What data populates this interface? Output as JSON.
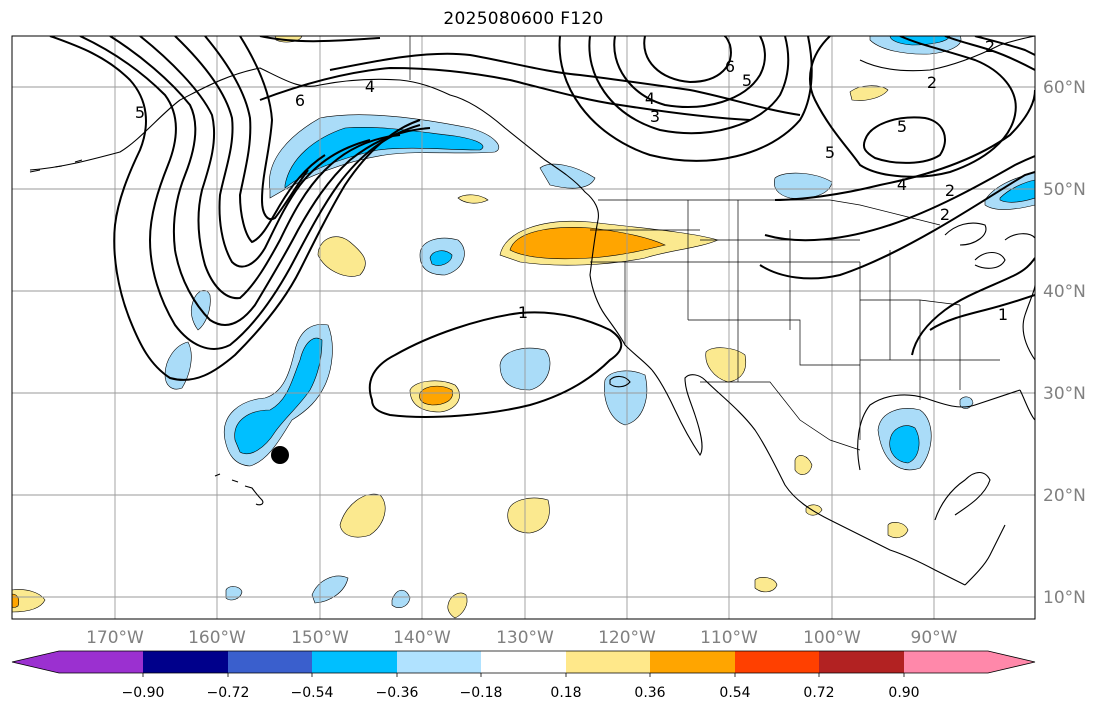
{
  "title": "2025080600 F120",
  "map": {
    "lon_labels": [
      "170°W",
      "160°W",
      "150°W",
      "140°W",
      "130°W",
      "120°W",
      "110°W",
      "100°W",
      "90°W"
    ],
    "lat_labels": [
      "60°N",
      "50°N",
      "40°N",
      "30°N",
      "20°N",
      "10°N"
    ],
    "contour_labels": [
      "5",
      "6",
      "4",
      "3",
      "6",
      "5",
      "4",
      "5",
      "2",
      "2",
      "5",
      "4",
      "2",
      "1",
      "2",
      "1"
    ]
  },
  "colorbar": {
    "ticks": [
      "−0.90",
      "−0.72",
      "−0.54",
      "−0.36",
      "−0.18",
      "0.18",
      "0.36",
      "0.54",
      "0.72",
      "0.90"
    ],
    "colors": [
      "#9b30d0",
      "#00008b",
      "#3a5fcd",
      "#00bfff",
      "#b0e2ff",
      "#ffffff",
      "#ffe88a",
      "#ffa500",
      "#ff4000",
      "#b22222",
      "#ff88aa"
    ]
  },
  "fill_colors": {
    "light_blue": "#aadcf8",
    "blue": "#00bfff",
    "light_yellow": "#fbe98f",
    "orange": "#ffa500"
  }
}
